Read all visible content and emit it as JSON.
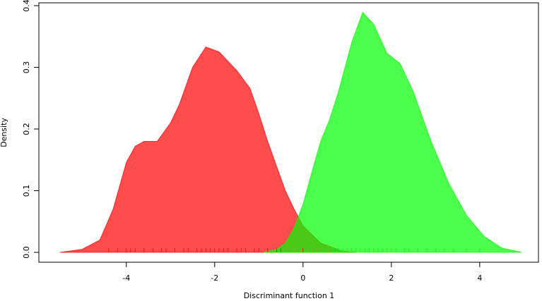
{
  "chart_data": {
    "type": "density",
    "x_label": "Discriminant function 1",
    "y_label": "Density",
    "xlim": [
      -5.98,
      5.33
    ],
    "ylim": [
      -0.016,
      0.4046
    ],
    "xticks": [
      -4,
      -2,
      0,
      2,
      4
    ],
    "yticks": [
      {
        "value": 0,
        "label": "0.0"
      },
      0.1,
      0.2,
      0.3,
      0.4
    ],
    "alpha": 0.7,
    "series": [
      {
        "color": "#ff0000",
        "x": [
          -5.5,
          -5.0,
          -4.6,
          -4.3,
          -4.0,
          -3.8,
          -3.6,
          -3.3,
          -3.0,
          -2.8,
          -2.5,
          -2.2,
          -1.9,
          -1.5,
          -1.2,
          -1.0,
          -0.8,
          -0.6,
          -0.4,
          -0.2,
          0,
          0.4,
          0.9,
          1.2
        ],
        "values": [
          0,
          0.005,
          0.02,
          0.07,
          0.146,
          0.172,
          0.18,
          0.18,
          0.21,
          0.24,
          0.3,
          0.333,
          0.325,
          0.295,
          0.266,
          0.225,
          0.18,
          0.14,
          0.1,
          0.07,
          0.043,
          0.015,
          0.002,
          0
        ],
        "rug": [
          -4.4,
          -4.2,
          -4.0,
          -3.9,
          -3.8,
          -3.6,
          -3.4,
          -3.2,
          -3.1,
          -2.9,
          -2.7,
          -2.6,
          -2.4,
          -2.3,
          -2.2,
          -2.1,
          -2.0,
          -1.9,
          -1.8,
          -1.7,
          -1.5,
          -1.4,
          -1.3,
          -1.1,
          -1.0,
          -0.8,
          -0.6,
          -0.5,
          -0.3,
          -0.1,
          0
        ]
      },
      {
        "color": "#00ff00",
        "x": [
          -0.9,
          -0.6,
          -0.4,
          -0.2,
          0,
          0.2,
          0.4,
          0.6,
          0.8,
          1.1,
          1.35,
          1.6,
          1.9,
          2.2,
          2.5,
          2.9,
          3.3,
          3.7,
          4.1,
          4.5,
          4.95
        ],
        "values": [
          0,
          0.005,
          0.015,
          0.04,
          0.078,
          0.13,
          0.18,
          0.215,
          0.26,
          0.34,
          0.389,
          0.37,
          0.323,
          0.306,
          0.26,
          0.18,
          0.112,
          0.06,
          0.026,
          0.007,
          0
        ],
        "rug": [
          -0.3,
          -0.1,
          0.1,
          0.3,
          0.5,
          0.7,
          0.8,
          0.9,
          1.0,
          1.1,
          1.2,
          1.3,
          1.4,
          1.5,
          1.6,
          1.7,
          1.8,
          1.9,
          2.0,
          2.1,
          2.3,
          2.4,
          2.6,
          2.8,
          3.0,
          3.2,
          3.4,
          3.7,
          4.0
        ]
      }
    ]
  }
}
